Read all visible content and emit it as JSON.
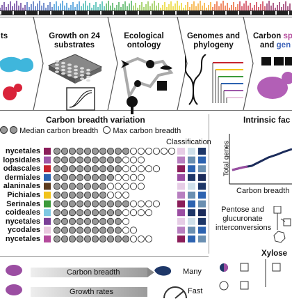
{
  "colors": {
    "rainbow": [
      "#5a2d91",
      "#3e63b8",
      "#2e8fd6",
      "#2fb3a8",
      "#3faa4f",
      "#8cc63f",
      "#e8d21d",
      "#f4a21d",
      "#ea5a24",
      "#c9283e",
      "#8e1f5b"
    ],
    "orders": [
      "#8b1e5a",
      "#9e57a8",
      "#c6232e",
      "#2d63b0",
      "#5b3a1e",
      "#f1c31b",
      "#3b9a3a",
      "#7ec8e3",
      "#7b3f98",
      "#e9c8df",
      "#b44a9c"
    ],
    "purple": "#9b4ea2",
    "teal": "#2aa3a6",
    "navy": "#1e3768",
    "accent": "#b44a9c"
  },
  "panels": {
    "p1": {
      "label": "ts"
    },
    "p2": {
      "label": "Growth on 24 substrates"
    },
    "p3": {
      "label": "Ecological ontology"
    },
    "p4": {
      "label": "Genomes and phylogeny"
    },
    "p5": {
      "label_a": "Carbon",
      "label_b": "sp",
      "label_c": "and",
      "label_d": "gen"
    }
  },
  "variation": {
    "title": "Carbon breadth variation",
    "legend_median": "Median carbon breadth",
    "legend_max": "Max carbon breadth",
    "classification": "Classification",
    "orders": [
      "nycetales",
      "lopsidales",
      "odascales",
      "dermiales",
      "alaninales",
      "Pichiales",
      "Serinales",
      "coideales",
      "nycetales",
      "ycodales",
      "nycetales"
    ],
    "median_counts": [
      10,
      9,
      9,
      8,
      7,
      7,
      10,
      9,
      9,
      9,
      10
    ],
    "max_counts": [
      16,
      12,
      14,
      12,
      12,
      10,
      14,
      13,
      10,
      11,
      13
    ]
  },
  "intrinsic": {
    "title": "Intrinsic fac",
    "ylabel": "Total genes",
    "xlabel": "Carbon breadth",
    "pathway": "Pentose and glucuronate interconversions",
    "node": "Xylose"
  },
  "bottom": {
    "bar1": "Carbon breadth",
    "bar1_end": "Many",
    "bar2": "Growth rates",
    "bar2_end": "Fast"
  }
}
